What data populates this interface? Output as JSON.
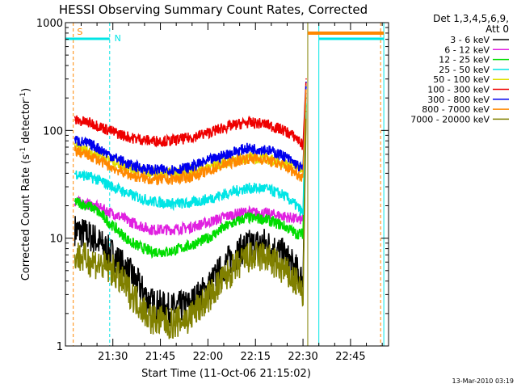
{
  "chart_data": {
    "type": "line",
    "title": "HESSI Observing Summary Count Rates, Corrected",
    "xlabel": "Start Time (11-Oct-06 21:15:02)",
    "ylabel": "Corrected Count Rate (s",
    "ylabel_sup1": "-1",
    "ylabel_mid": " detector",
    "ylabel_sup2": "-1",
    "ylabel_end": ")",
    "yscale": "log",
    "ylim": [
      1,
      1000
    ],
    "xlim": [
      "21:15:02",
      "22:57:00"
    ],
    "xticks": [
      "21:30",
      "21:45",
      "22:00",
      "22:15",
      "22:30",
      "22:45"
    ],
    "yticks": [
      "1",
      "10",
      "100",
      "1000"
    ],
    "legend_header": [
      "Det 1,3,4,5,6,9,",
      "Att 0"
    ],
    "legend_position": "right",
    "series": [
      {
        "name": "3 - 6 keV",
        "color": "#000000",
        "x": [
          "21:18",
          "21:24",
          "21:30",
          "21:36",
          "21:42",
          "21:48",
          "21:54",
          "22:00",
          "22:06",
          "22:12",
          "22:18",
          "22:24",
          "22:28",
          "22:30",
          "22:31"
        ],
        "y": [
          12,
          10,
          7,
          4.5,
          2.5,
          2.2,
          2.4,
          3.5,
          6,
          8.5,
          9,
          7,
          5,
          4,
          200
        ]
      },
      {
        "name": "6 - 12 keV",
        "color": "#e020e0",
        "x": [
          "21:18",
          "21:24",
          "21:30",
          "21:36",
          "21:42",
          "21:48",
          "21:54",
          "22:00",
          "22:06",
          "22:12",
          "22:18",
          "22:24",
          "22:28",
          "22:30",
          "22:31"
        ],
        "y": [
          22,
          20,
          17,
          14,
          12,
          12,
          12.5,
          14,
          16,
          17.5,
          17,
          16,
          15,
          15,
          220
        ]
      },
      {
        "name": "12 - 25 keV",
        "color": "#00dd00",
        "x": [
          "21:18",
          "21:24",
          "21:30",
          "21:36",
          "21:42",
          "21:48",
          "21:54",
          "22:00",
          "22:06",
          "22:12",
          "22:18",
          "22:24",
          "22:28",
          "22:30",
          "22:31"
        ],
        "y": [
          22,
          19,
          13,
          9,
          7.5,
          7.5,
          8.5,
          10,
          13,
          15.5,
          15,
          13,
          11,
          11,
          200
        ]
      },
      {
        "name": "25 - 50 keV",
        "color": "#00e5e5",
        "x": [
          "21:18",
          "21:24",
          "21:30",
          "21:36",
          "21:42",
          "21:48",
          "21:54",
          "22:00",
          "22:06",
          "22:12",
          "22:18",
          "22:24",
          "22:28",
          "22:30",
          "22:31"
        ],
        "y": [
          40,
          36,
          30,
          25,
          22,
          21,
          21,
          23,
          26,
          29,
          29,
          25,
          20,
          17,
          250
        ]
      },
      {
        "name": "50 - 100 keV",
        "color": "#e0e000",
        "x": [
          "21:18",
          "21:24",
          "21:30",
          "21:36",
          "21:42",
          "21:48",
          "21:54",
          "22:00",
          "22:06",
          "22:12",
          "22:18",
          "22:24",
          "22:28",
          "22:30",
          "22:31"
        ],
        "y": [
          70,
          62,
          52,
          44,
          40,
          40,
          42,
          46,
          51,
          56,
          55,
          50,
          46,
          45,
          260
        ]
      },
      {
        "name": "100 - 300 keV",
        "color": "#ee0000",
        "x": [
          "21:18",
          "21:24",
          "21:30",
          "21:36",
          "21:42",
          "21:48",
          "21:54",
          "22:00",
          "22:06",
          "22:12",
          "22:18",
          "22:24",
          "22:28",
          "22:30",
          "22:31"
        ],
        "y": [
          125,
          115,
          97,
          85,
          80,
          80,
          85,
          95,
          108,
          118,
          115,
          100,
          85,
          72,
          300
        ]
      },
      {
        "name": "300 - 800 keV",
        "color": "#0000ee",
        "x": [
          "21:18",
          "21:24",
          "21:30",
          "21:36",
          "21:42",
          "21:48",
          "21:54",
          "22:00",
          "22:06",
          "22:12",
          "22:18",
          "22:24",
          "22:28",
          "22:30",
          "22:31"
        ],
        "y": [
          82,
          72,
          57,
          47,
          43,
          43,
          45,
          52,
          60,
          68,
          67,
          58,
          48,
          43,
          280
        ]
      },
      {
        "name": "800 - 7000 keV",
        "color": "#ff8800",
        "x": [
          "21:18",
          "21:24",
          "21:30",
          "21:36",
          "21:42",
          "21:48",
          "21:54",
          "22:00",
          "22:06",
          "22:12",
          "22:18",
          "22:24",
          "22:28",
          "22:30",
          "22:31"
        ],
        "y": [
          65,
          56,
          45,
          38,
          35,
          35,
          37,
          42,
          49,
          55,
          54,
          47,
          40,
          37,
          260
        ]
      },
      {
        "name": "7000 - 20000 keV",
        "color": "#808000",
        "x": [
          "21:18",
          "21:24",
          "21:30",
          "21:36",
          "21:42",
          "21:48",
          "21:54",
          "22:00",
          "22:06",
          "22:12",
          "22:18",
          "22:24",
          "22:28",
          "22:30",
          "22:31"
        ],
        "y": [
          7,
          6,
          5,
          3,
          1.8,
          1.6,
          1.8,
          2.8,
          4.5,
          6.5,
          6.8,
          5,
          3.8,
          3,
          150
        ]
      }
    ],
    "annotations": [
      {
        "text": "S",
        "color": "#ff8800"
      },
      {
        "text": "N",
        "color": "#00e5e5"
      }
    ],
    "footer_date": "13-Mar-2010 03:19"
  }
}
